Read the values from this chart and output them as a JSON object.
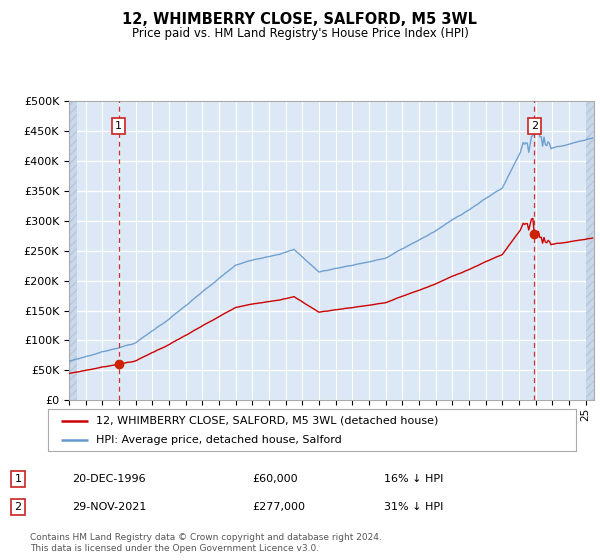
{
  "title": "12, WHIMBERRY CLOSE, SALFORD, M5 3WL",
  "subtitle": "Price paid vs. HM Land Registry's House Price Index (HPI)",
  "background_color": "#ffffff",
  "plot_bg_color": "#dce8f5",
  "grid_color": "#ffffff",
  "sale1_price": 60000,
  "sale1_year": 1996,
  "sale1_month": 12,
  "sale1_day": 20,
  "sale2_price": 277000,
  "sale2_year": 2021,
  "sale2_month": 11,
  "sale2_day": 29,
  "legend_line1": "12, WHIMBERRY CLOSE, SALFORD, M5 3WL (detached house)",
  "legend_line2": "HPI: Average price, detached house, Salford",
  "footer_note": "Contains HM Land Registry data © Crown copyright and database right 2024.\nThis data is licensed under the Open Government Licence v3.0.",
  "ylim": [
    0,
    500000
  ],
  "yticks": [
    0,
    50000,
    100000,
    150000,
    200000,
    250000,
    300000,
    350000,
    400000,
    450000,
    500000
  ],
  "red_line_color": "#cc0000",
  "blue_line_color": "#6699cc",
  "dashed_line_color": "#cc3333",
  "annotation_box_color": "#cc2222",
  "xmin": 1994,
  "xmax": 2025.5,
  "hatch_left_end": 1994.5,
  "hatch_right_start": 2025.0
}
